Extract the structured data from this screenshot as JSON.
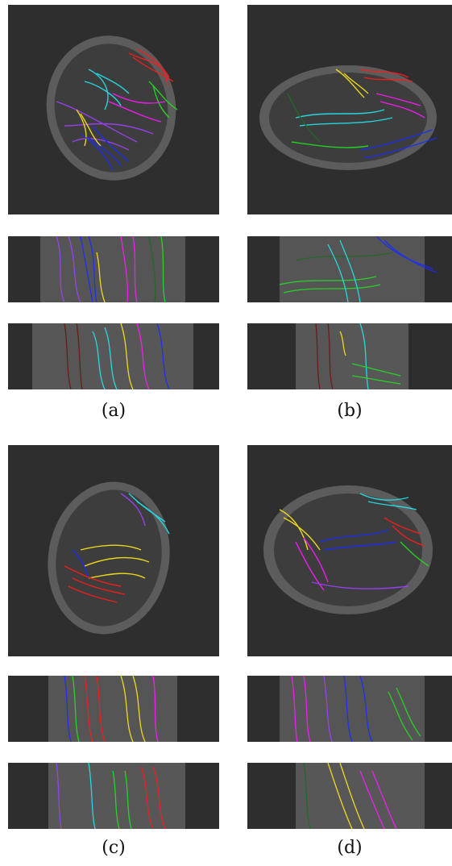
{
  "figure": {
    "captions": {
      "a": "(a)",
      "b": "(b)",
      "c": "(c)",
      "d": "(d)"
    }
  },
  "fiber_colors": {
    "red": "#ff1a1a",
    "green": "#22e022",
    "blue": "#1a2cff",
    "yellow": "#ffe81a",
    "cyan": "#22e6ee",
    "magenta": "#ff1aff",
    "purple": "#a040ff",
    "darkred": "#6b1a10",
    "darkgreen": "#1f6a26"
  },
  "background_color": "#2e2e2e"
}
